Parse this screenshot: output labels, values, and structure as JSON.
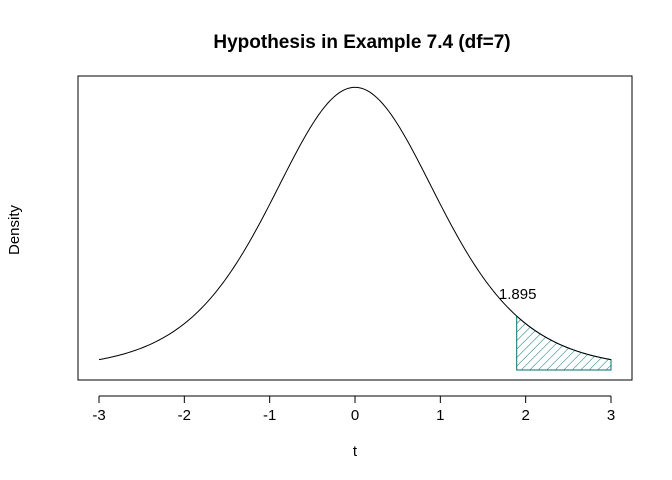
{
  "chart_data": {
    "type": "line",
    "title": "Hypothesis in Example 7.4 (df=7)",
    "xlabel": "t",
    "ylabel": "Density",
    "distribution": "Student t",
    "df": 7,
    "xlim": [
      -3,
      3
    ],
    "ylim": [
      0,
      0.38
    ],
    "x_ticks": [
      -3,
      -2,
      -1,
      0,
      1,
      2,
      3
    ],
    "x_tick_labels": [
      "-3",
      "-2",
      "-1",
      "0",
      "1",
      "2",
      "3"
    ],
    "y_ticks_shown": false,
    "grid": false,
    "series": [
      {
        "x": [
          -3,
          -2.5,
          -2,
          -1.5,
          -1,
          -0.5,
          0,
          0.5,
          1,
          1.5,
          2,
          2.5,
          3
        ],
        "y": [
          0.0114,
          0.0277,
          0.064,
          0.1299,
          0.2296,
          0.3355,
          0.3827,
          0.3355,
          0.2296,
          0.1299,
          0.064,
          0.0277,
          0.0114
        ]
      }
    ],
    "shaded_region": {
      "from": 1.895,
      "to": 3,
      "fill": "hatched",
      "color": "#007070"
    },
    "annotation": {
      "text": "1.895",
      "x": 1.895
    }
  }
}
